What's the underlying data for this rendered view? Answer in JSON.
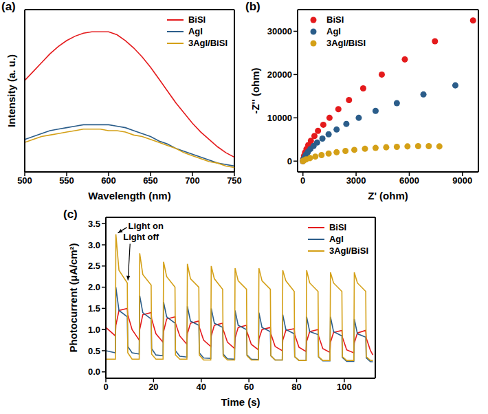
{
  "chart_data": [
    {
      "type": "line",
      "title": "(a)",
      "xlabel": "Wavelength (nm)",
      "ylabel": "Intensity (a. u.)",
      "x": [
        500,
        510,
        520,
        530,
        540,
        550,
        560,
        570,
        580,
        590,
        600,
        610,
        620,
        630,
        640,
        650,
        660,
        670,
        680,
        690,
        700,
        710,
        720,
        730,
        740,
        750
      ],
      "series": [
        {
          "name": "BiSI",
          "color": "#e41a1c",
          "values": [
            62,
            68,
            74,
            80,
            85,
            89,
            92,
            94,
            95,
            95,
            95,
            93,
            89,
            84,
            78,
            71,
            63,
            55,
            47,
            40,
            33,
            27,
            22,
            17,
            13,
            10
          ]
        },
        {
          "name": "AgI",
          "color": "#2b5d8a",
          "values": [
            22,
            24,
            26,
            28,
            29,
            30,
            31,
            32,
            32,
            32,
            32,
            31,
            30,
            28,
            26,
            24,
            21,
            19,
            16,
            14,
            12,
            10,
            8,
            6,
            5,
            4
          ]
        },
        {
          "name": "3AgI/BiSI",
          "color": "#d4a017",
          "values": [
            20,
            22,
            24,
            25,
            26,
            27,
            28,
            29,
            29,
            29,
            28,
            28,
            27,
            25,
            24,
            22,
            20,
            18,
            16,
            13,
            11,
            9,
            7,
            6,
            4,
            3
          ]
        }
      ],
      "xlim": [
        500,
        750
      ],
      "xticks": [
        500,
        550,
        600,
        650,
        700,
        750
      ],
      "ylim": [
        0,
        110
      ],
      "tick_labels": "x",
      "legend": "top right"
    },
    {
      "type": "scatter",
      "title": "(b)",
      "xlabel": "Z' (ohm)",
      "ylabel": "-Z'' (ohm)",
      "marker": "circle",
      "series": [
        {
          "name": "BiSI",
          "color": "#e41a1c",
          "x": [
            0,
            20,
            60,
            120,
            200,
            300,
            450,
            650,
            850,
            1150,
            1500,
            2000,
            2600,
            3400,
            4450,
            5750,
            7450,
            9600
          ],
          "values": [
            0,
            500,
            1200,
            2000,
            2800,
            3700,
            4700,
            5800,
            7000,
            8400,
            10000,
            12000,
            14100,
            16800,
            20000,
            23500,
            27700,
            32500
          ]
        },
        {
          "name": "AgI",
          "color": "#2b5d8a",
          "x": [
            0,
            30,
            90,
            170,
            280,
            420,
            600,
            800,
            1100,
            1450,
            1900,
            2450,
            3150,
            4100,
            5300,
            6800,
            8600
          ],
          "values": [
            0,
            400,
            900,
            1500,
            2100,
            2800,
            3500,
            4300,
            5200,
            6200,
            7300,
            8600,
            10000,
            11600,
            13400,
            15400,
            17500
          ]
        },
        {
          "name": "3AgI/BiSI",
          "color": "#d4a017",
          "x": [
            0,
            50,
            180,
            400,
            700,
            1050,
            1450,
            1900,
            2400,
            2900,
            3500,
            4100,
            4700,
            5300,
            5900,
            6500,
            7100,
            7700
          ],
          "values": [
            0,
            150,
            400,
            700,
            1050,
            1400,
            1750,
            2050,
            2350,
            2600,
            2850,
            3050,
            3200,
            3300,
            3400,
            3450,
            3450,
            3400
          ]
        }
      ],
      "xlim": [
        -300,
        9900
      ],
      "xticks": [
        0,
        3000,
        6000,
        9000
      ],
      "ylim": [
        -2500,
        35000
      ],
      "yticks": [
        0,
        10000,
        20000,
        30000
      ],
      "legend": "top left"
    },
    {
      "type": "line",
      "title": "(c)",
      "xlabel": "Time (s)",
      "ylabel": "Photocurrent (μA/cm²)",
      "x": [
        0,
        4,
        4.2,
        5.5,
        9,
        9.2,
        11,
        14,
        14.2,
        15.5,
        19,
        19.2,
        21,
        24,
        24.2,
        25.5,
        29,
        29.2,
        31,
        34,
        34.2,
        35.5,
        39,
        39.2,
        41,
        44,
        44.2,
        45.5,
        49,
        49.2,
        51,
        54,
        54.2,
        55.5,
        59,
        59.2,
        61,
        64,
        64.2,
        65.5,
        69,
        69.2,
        71,
        74,
        74.2,
        75.5,
        79,
        79.2,
        81,
        84,
        84.2,
        85.5,
        89,
        89.2,
        91,
        94,
        94.2,
        95.5,
        99,
        99.2,
        101,
        104,
        104.2,
        105.5,
        109,
        109.2,
        111,
        112
      ],
      "series": [
        {
          "name": "BiSI",
          "color": "#e41a1c",
          "values": [
            1.05,
            0.85,
            1.1,
            1.45,
            1.5,
            1.35,
            1.0,
            0.75,
            1.0,
            1.35,
            1.4,
            1.25,
            0.9,
            0.7,
            0.95,
            1.25,
            1.3,
            1.15,
            0.85,
            0.65,
            0.9,
            1.15,
            1.2,
            1.05,
            0.75,
            0.6,
            0.85,
            1.1,
            1.15,
            1.0,
            0.7,
            0.55,
            0.8,
            1.05,
            1.1,
            0.95,
            0.65,
            0.52,
            0.78,
            1.0,
            1.05,
            0.9,
            0.6,
            0.5,
            0.75,
            0.98,
            1.02,
            0.88,
            0.58,
            0.48,
            0.72,
            0.95,
            1.0,
            0.85,
            0.55,
            0.46,
            0.7,
            0.93,
            0.98,
            0.82,
            0.52,
            0.45,
            0.68,
            0.92,
            0.98,
            0.8,
            0.5,
            0.4
          ]
        },
        {
          "name": "AgI",
          "color": "#2b5d8a",
          "values": [
            0.5,
            0.45,
            2.0,
            1.45,
            1.3,
            0.6,
            0.45,
            0.42,
            1.8,
            1.4,
            1.25,
            0.55,
            0.4,
            0.38,
            1.65,
            1.3,
            1.15,
            0.5,
            0.37,
            0.35,
            1.55,
            1.2,
            1.1,
            0.45,
            0.33,
            0.32,
            1.5,
            1.15,
            1.05,
            0.42,
            0.31,
            0.3,
            1.45,
            1.1,
            1.0,
            0.4,
            0.3,
            0.29,
            1.4,
            1.05,
            0.95,
            0.38,
            0.28,
            0.28,
            1.35,
            1.0,
            0.9,
            0.36,
            0.27,
            0.27,
            1.3,
            0.95,
            0.88,
            0.35,
            0.26,
            0.26,
            1.3,
            0.95,
            0.85,
            0.34,
            0.25,
            0.25,
            1.25,
            0.9,
            0.82,
            0.33,
            0.24,
            0.24
          ]
        },
        {
          "name": "3AgI/BiSI",
          "color": "#d4a017",
          "values": [
            0.3,
            0.3,
            3.25,
            2.4,
            2.1,
            0.45,
            0.3,
            0.3,
            2.8,
            2.3,
            2.05,
            0.42,
            0.3,
            0.3,
            2.6,
            2.25,
            2.0,
            0.4,
            0.3,
            0.3,
            2.55,
            2.2,
            2.0,
            0.4,
            0.28,
            0.28,
            2.5,
            2.2,
            1.95,
            0.38,
            0.28,
            0.28,
            2.45,
            2.15,
            1.95,
            0.38,
            0.28,
            0.28,
            2.45,
            2.15,
            1.95,
            0.38,
            0.28,
            0.28,
            2.4,
            2.15,
            1.9,
            0.36,
            0.27,
            0.27,
            2.4,
            2.1,
            1.9,
            0.36,
            0.27,
            0.27,
            2.35,
            2.1,
            1.9,
            0.36,
            0.27,
            0.27,
            2.35,
            2.1,
            1.9,
            0.36,
            0.27,
            0.27
          ]
        }
      ],
      "xlim": [
        0,
        113
      ],
      "xticks": [
        0,
        20,
        40,
        60,
        80,
        100
      ],
      "ylim": [
        -0.15,
        3.65
      ],
      "yticks": [
        {
          "value": 0,
          "label": "0.0"
        },
        0.5,
        {
          "value": 1,
          "label": "1.0"
        },
        1.5,
        {
          "value": 2,
          "label": "2.0"
        },
        2.5,
        {
          "value": 3,
          "label": "3.0"
        },
        3.5
      ],
      "annotations": [
        {
          "text": "Light on",
          "x": 4.2,
          "y": 3.25
        },
        {
          "text": "Light off",
          "x": 9,
          "y": 2.1
        }
      ],
      "legend": "top right"
    }
  ]
}
